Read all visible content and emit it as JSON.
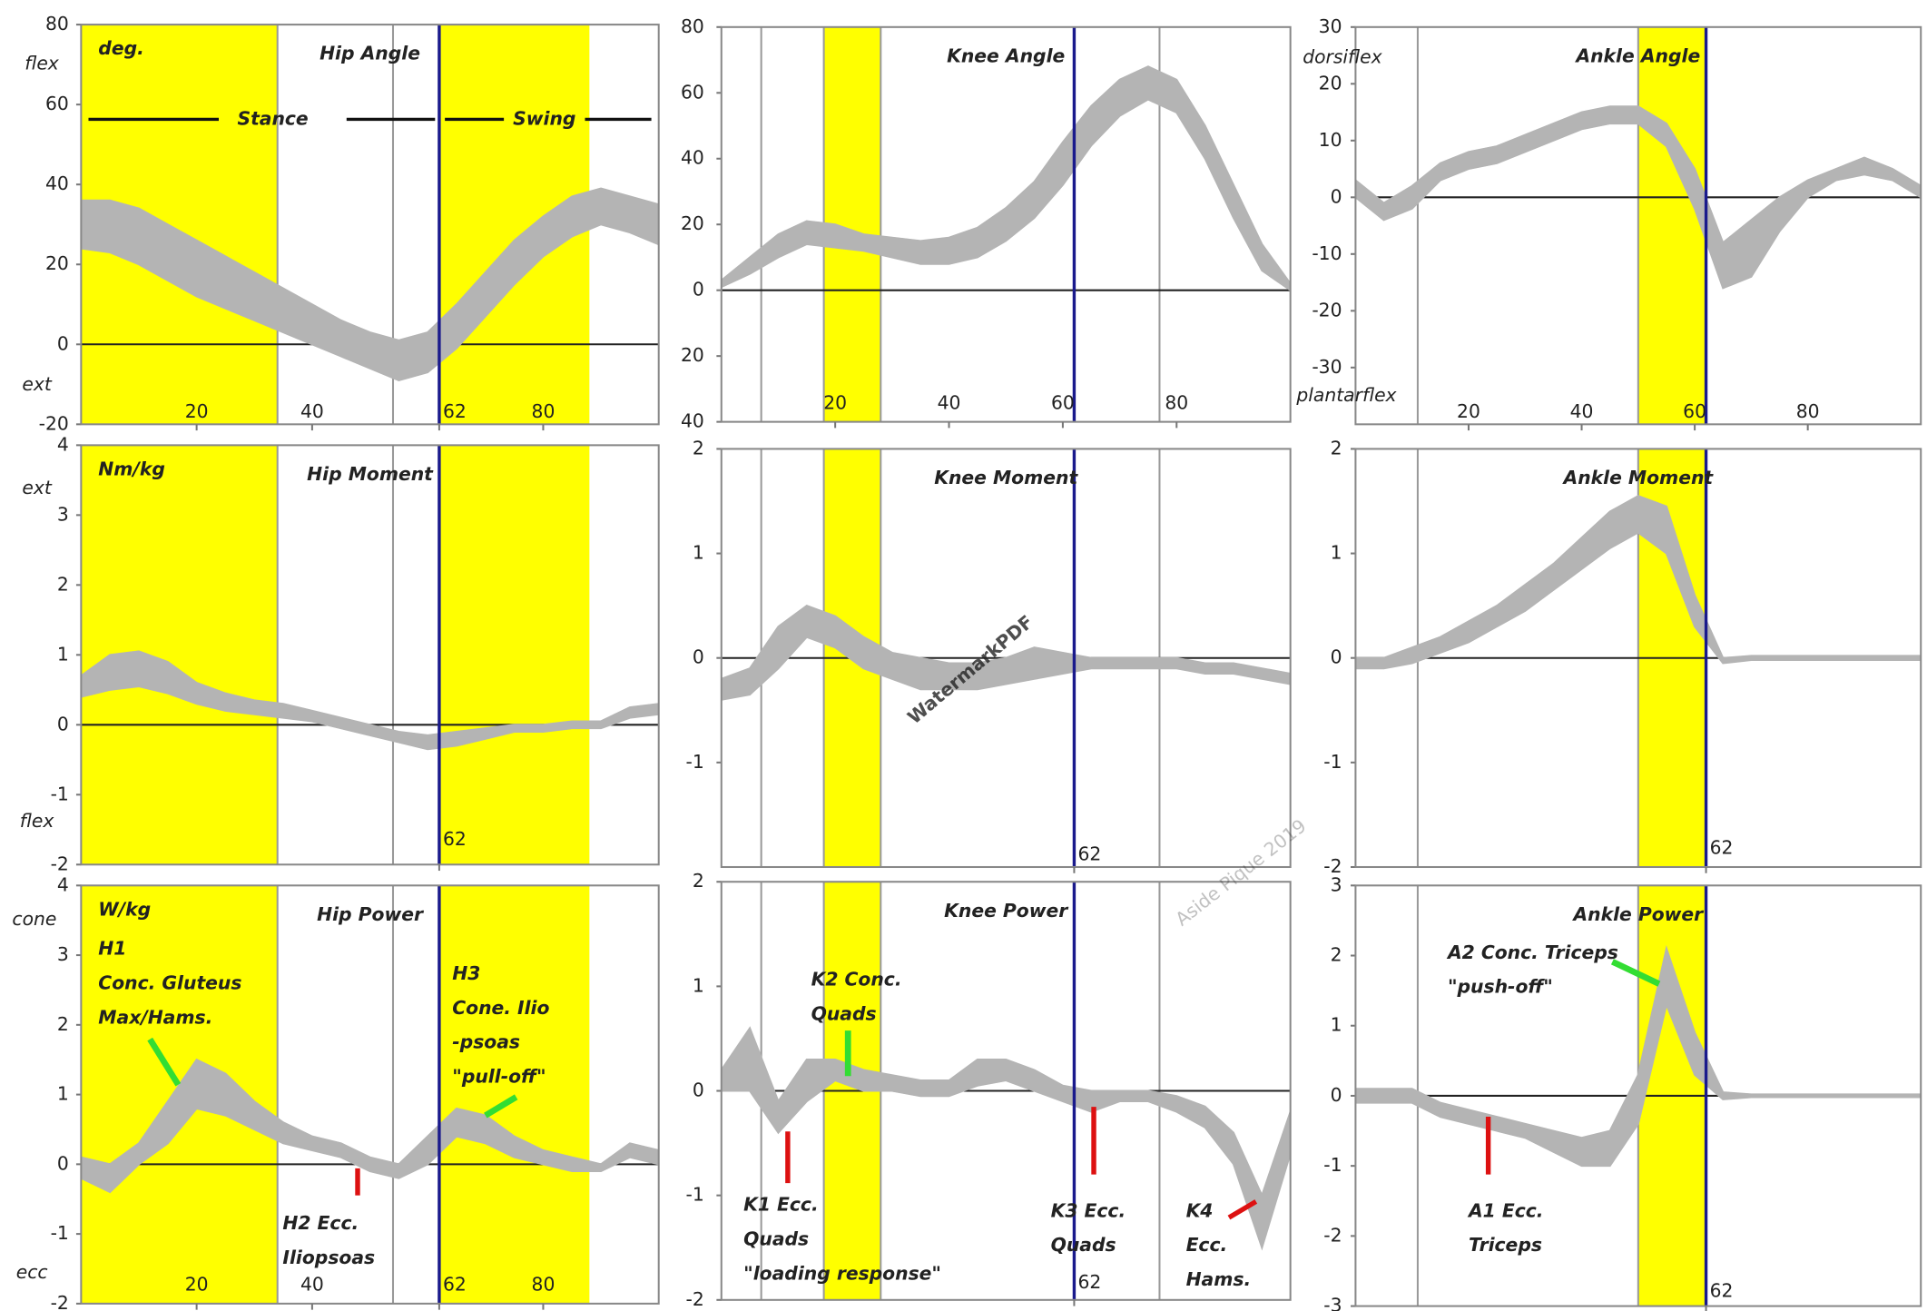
{
  "chart_data": [
    {
      "type": "band",
      "title": "Hip Angle",
      "unit": "deg.",
      "side_labels": [
        "flex",
        "ext"
      ],
      "phases": [
        "Stance",
        "Swing"
      ],
      "color": "#b4b4b4",
      "x": [
        0,
        5,
        10,
        15,
        20,
        25,
        30,
        35,
        40,
        45,
        50,
        55,
        60,
        65,
        70,
        75,
        80,
        85,
        90,
        95,
        100
      ],
      "upper": [
        36,
        36,
        34,
        30,
        26,
        22,
        18,
        14,
        10,
        6,
        3,
        1,
        3,
        10,
        18,
        26,
        32,
        37,
        39,
        37,
        35
      ],
      "lower": [
        24,
        23,
        20,
        16,
        12,
        9,
        6,
        3,
        0,
        -3,
        -6,
        -9,
        -7,
        -1,
        7,
        15,
        22,
        27,
        30,
        28,
        25
      ],
      "xlim": [
        0,
        100
      ],
      "xticks": [
        20,
        40,
        62,
        80
      ],
      "ylim": [
        -20,
        80
      ],
      "yticks": [
        80,
        60,
        40,
        20,
        0,
        -20
      ],
      "highlights": [
        [
          0,
          34
        ],
        [
          62,
          88
        ]
      ],
      "vlines": [
        34,
        54
      ],
      "marker_x": 62
    },
    {
      "type": "band",
      "title": "Knee Angle",
      "color": "#b4b4b4",
      "x": [
        0,
        5,
        10,
        15,
        20,
        25,
        30,
        35,
        40,
        45,
        50,
        55,
        60,
        65,
        70,
        75,
        80,
        85,
        90,
        95,
        100
      ],
      "upper": [
        3,
        10,
        17,
        21,
        20,
        17,
        16,
        15,
        16,
        19,
        25,
        33,
        45,
        56,
        64,
        68,
        64,
        50,
        32,
        14,
        2
      ],
      "lower": [
        1,
        5,
        10,
        14,
        13,
        12,
        10,
        8,
        8,
        10,
        15,
        22,
        32,
        44,
        53,
        58,
        54,
        40,
        22,
        6,
        0
      ],
      "xlim": [
        0,
        100
      ],
      "xticks": [
        20,
        40,
        60,
        80
      ],
      "ylim": [
        -40,
        80
      ],
      "yticks": [
        80,
        60,
        40,
        20,
        0,
        {
          "value": -20,
          "label": "20"
        },
        {
          "value": -40,
          "label": "40"
        }
      ],
      "highlights": [
        [
          18,
          28
        ]
      ],
      "vlines": [
        7,
        18,
        28,
        77
      ],
      "marker_x": 62
    },
    {
      "type": "band",
      "title": "Ankle Angle",
      "side_labels": [
        "dorsiflex",
        "plantarflex"
      ],
      "color": "#b4b4b4",
      "x": [
        0,
        5,
        10,
        15,
        20,
        25,
        30,
        35,
        40,
        45,
        50,
        55,
        60,
        65,
        70,
        75,
        80,
        85,
        90,
        95,
        100
      ],
      "upper": [
        3,
        -1,
        2,
        6,
        8,
        9,
        11,
        13,
        15,
        16,
        16,
        13,
        5,
        -8,
        -4,
        0,
        3,
        5,
        7,
        5,
        2
      ],
      "lower": [
        0,
        -4,
        -2,
        3,
        5,
        6,
        8,
        10,
        12,
        13,
        13,
        9,
        -2,
        -16,
        -14,
        -6,
        0,
        3,
        4,
        3,
        0
      ],
      "xlim": [
        0,
        100
      ],
      "xticks": [
        20,
        40,
        60,
        80
      ],
      "ylim": [
        -40,
        30
      ],
      "yticks": [
        30,
        20,
        10,
        0,
        -10,
        -20,
        -30
      ],
      "highlights": [
        [
          50,
          62
        ]
      ],
      "vlines": [
        11,
        50
      ],
      "marker_x": 62
    },
    {
      "type": "band",
      "title": "Hip Moment",
      "unit": "Nm/kg",
      "side_labels": [
        "ext",
        "flex"
      ],
      "color": "#b4b4b4",
      "x": [
        0,
        5,
        10,
        15,
        20,
        25,
        30,
        35,
        40,
        45,
        50,
        55,
        60,
        65,
        70,
        75,
        80,
        85,
        90,
        95,
        100
      ],
      "upper": [
        0.7,
        1.0,
        1.05,
        0.9,
        0.6,
        0.45,
        0.35,
        0.3,
        0.2,
        0.1,
        0.0,
        -0.1,
        -0.15,
        -0.1,
        -0.05,
        0.0,
        0.0,
        0.05,
        0.05,
        0.25,
        0.3
      ],
      "lower": [
        0.4,
        0.5,
        0.55,
        0.45,
        0.3,
        0.2,
        0.15,
        0.1,
        0.05,
        -0.05,
        -0.15,
        -0.25,
        -0.35,
        -0.3,
        -0.2,
        -0.1,
        -0.1,
        -0.05,
        -0.05,
        0.1,
        0.15
      ],
      "xlim": [
        0,
        100
      ],
      "xticks": [
        62
      ],
      "ylim": [
        -2,
        4
      ],
      "yticks": [
        4,
        3,
        2,
        1,
        0,
        -1,
        -2
      ],
      "highlights": [
        [
          0,
          34
        ],
        [
          62,
          88
        ]
      ],
      "vlines": [
        34,
        54
      ],
      "marker_x": 62
    },
    {
      "type": "band",
      "title": "Knee Moment",
      "color": "#b4b4b4",
      "x": [
        0,
        5,
        10,
        15,
        20,
        25,
        30,
        35,
        40,
        45,
        50,
        55,
        60,
        65,
        70,
        75,
        80,
        85,
        90,
        95,
        100
      ],
      "upper": [
        -0.2,
        -0.1,
        0.3,
        0.5,
        0.4,
        0.2,
        0.05,
        0.0,
        -0.05,
        -0.05,
        0.0,
        0.1,
        0.05,
        0.0,
        0.0,
        0.0,
        0.0,
        -0.05,
        -0.05,
        -0.1,
        -0.15
      ],
      "lower": [
        -0.4,
        -0.35,
        -0.1,
        0.2,
        0.1,
        -0.1,
        -0.2,
        -0.3,
        -0.3,
        -0.3,
        -0.25,
        -0.2,
        -0.15,
        -0.1,
        -0.1,
        -0.1,
        -0.1,
        -0.15,
        -0.15,
        -0.2,
        -0.25
      ],
      "xlim": [
        0,
        100
      ],
      "xticks": [
        62
      ],
      "ylim": [
        -2,
        2
      ],
      "yticks": [
        2,
        1,
        0,
        -1
      ],
      "highlights": [
        [
          18,
          28
        ]
      ],
      "vlines": [
        7,
        18,
        28,
        77
      ],
      "marker_x": 62
    },
    {
      "type": "band",
      "title": "Ankle Moment",
      "color": "#b4b4b4",
      "x": [
        0,
        5,
        10,
        15,
        20,
        25,
        30,
        35,
        40,
        45,
        50,
        55,
        60,
        65,
        70,
        75,
        80,
        85,
        90,
        95,
        100
      ],
      "upper": [
        0.0,
        0.0,
        0.1,
        0.2,
        0.35,
        0.5,
        0.7,
        0.9,
        1.15,
        1.4,
        1.55,
        1.45,
        0.6,
        0.0,
        0.02,
        0.02,
        0.02,
        0.02,
        0.02,
        0.02,
        0.02
      ],
      "lower": [
        -0.1,
        -0.1,
        -0.05,
        0.05,
        0.15,
        0.3,
        0.45,
        0.65,
        0.85,
        1.05,
        1.2,
        1.0,
        0.3,
        -0.05,
        -0.02,
        -0.02,
        -0.02,
        -0.02,
        -0.02,
        -0.02,
        -0.02
      ],
      "xlim": [
        0,
        100
      ],
      "xticks": [
        62
      ],
      "ylim": [
        -2,
        2
      ],
      "yticks": [
        2,
        1,
        0,
        -1,
        -2
      ],
      "highlights": [
        [
          50,
          62
        ]
      ],
      "vlines": [
        11,
        50
      ],
      "marker_x": 62
    },
    {
      "type": "band",
      "title": "Hip Power",
      "unit": "W/kg",
      "side_labels": [
        "cone",
        "ecc"
      ],
      "color": "#b4b4b4",
      "x": [
        0,
        5,
        10,
        15,
        20,
        25,
        30,
        35,
        40,
        45,
        50,
        55,
        60,
        65,
        70,
        75,
        80,
        85,
        90,
        95,
        100
      ],
      "upper": [
        0.1,
        0.0,
        0.3,
        0.9,
        1.5,
        1.3,
        0.9,
        0.6,
        0.4,
        0.3,
        0.1,
        0.0,
        0.4,
        0.8,
        0.7,
        0.4,
        0.2,
        0.1,
        0.0,
        0.3,
        0.2
      ],
      "lower": [
        -0.2,
        -0.4,
        0.0,
        0.3,
        0.8,
        0.7,
        0.5,
        0.3,
        0.2,
        0.1,
        -0.1,
        -0.2,
        0.0,
        0.4,
        0.3,
        0.1,
        0.0,
        -0.1,
        -0.1,
        0.1,
        0.0
      ],
      "xlim": [
        0,
        100
      ],
      "xticks": [
        20,
        40,
        62,
        80
      ],
      "ylim": [
        -2,
        4
      ],
      "yticks": [
        4,
        3,
        2,
        1,
        0,
        -1,
        -2
      ],
      "highlights": [
        [
          0,
          34
        ],
        [
          62,
          88
        ]
      ],
      "vlines": [
        34,
        54
      ],
      "marker_x": 62,
      "annotations": [
        {
          "color": "#33dd33",
          "lines": [
            "H1",
            "Conc. Gluteus",
            "Max/Hams."
          ]
        },
        {
          "color": "#33dd33",
          "lines": [
            "H3",
            "Cone. Ilio",
            "-psoas",
            "\"pull-off\""
          ]
        },
        {
          "color": "#dd1111",
          "lines": [
            "H2 Ecc.",
            "Iliopsoas"
          ]
        }
      ]
    },
    {
      "type": "band",
      "title": "Knee Power",
      "color": "#b4b4b4",
      "x": [
        0,
        5,
        10,
        15,
        20,
        25,
        30,
        35,
        40,
        45,
        50,
        55,
        60,
        65,
        70,
        75,
        80,
        85,
        90,
        95,
        100
      ],
      "upper": [
        0.2,
        0.6,
        -0.1,
        0.3,
        0.3,
        0.2,
        0.15,
        0.1,
        0.1,
        0.3,
        0.3,
        0.2,
        0.05,
        0.0,
        0.0,
        0.0,
        -0.05,
        -0.15,
        -0.4,
        -1.0,
        -0.2
      ],
      "lower": [
        0.0,
        0.0,
        -0.4,
        -0.1,
        0.1,
        0.0,
        0.0,
        -0.05,
        -0.05,
        0.05,
        0.1,
        0.0,
        -0.1,
        -0.2,
        -0.1,
        -0.1,
        -0.2,
        -0.35,
        -0.7,
        -1.5,
        -0.6
      ],
      "xlim": [
        0,
        100
      ],
      "xticks": [
        62
      ],
      "ylim": [
        -2,
        2
      ],
      "yticks": [
        2,
        1,
        0,
        -1,
        -2
      ],
      "highlights": [
        [
          18,
          28
        ]
      ],
      "vlines": [
        7,
        18,
        28,
        77
      ],
      "marker_x": 62,
      "annotations": [
        {
          "color": "#33dd33",
          "lines": [
            "K2 Conc.",
            "Quads"
          ]
        },
        {
          "color": "#dd1111",
          "lines": [
            "K1 Ecc.",
            "Quads",
            "\"loading response\""
          ]
        },
        {
          "color": "#dd1111",
          "lines": [
            "K3 Ecc.",
            "Quads"
          ]
        },
        {
          "color": "#dd1111",
          "lines": [
            "K4",
            "Ecc.",
            "Hams."
          ]
        }
      ]
    },
    {
      "type": "band",
      "title": "Ankle Power",
      "color": "#b4b4b4",
      "x": [
        0,
        5,
        10,
        15,
        20,
        25,
        30,
        35,
        40,
        45,
        50,
        55,
        60,
        65,
        70,
        75,
        80,
        85,
        90,
        95,
        100
      ],
      "upper": [
        0.1,
        0.1,
        0.1,
        -0.1,
        -0.2,
        -0.3,
        -0.4,
        -0.5,
        -0.6,
        -0.5,
        0.3,
        2.1,
        0.9,
        0.05,
        0.02,
        0.02,
        0.02,
        0.02,
        0.02,
        0.02,
        0.02
      ],
      "lower": [
        -0.1,
        -0.1,
        -0.1,
        -0.3,
        -0.4,
        -0.5,
        -0.6,
        -0.8,
        -1.0,
        -1.0,
        -0.4,
        1.3,
        0.3,
        -0.05,
        -0.02,
        -0.02,
        -0.02,
        -0.02,
        -0.02,
        -0.02,
        -0.02
      ],
      "xlim": [
        0,
        100
      ],
      "xticks": [
        62
      ],
      "ylim": [
        -3,
        3
      ],
      "yticks": [
        3,
        2,
        1,
        0,
        -1,
        -2,
        -3
      ],
      "highlights": [
        [
          50,
          62
        ]
      ],
      "vlines": [
        11,
        50
      ],
      "marker_x": 62,
      "annotations": [
        {
          "color": "#33dd33",
          "lines": [
            "A2 Conc. Triceps",
            "\"push-off\""
          ]
        },
        {
          "color": "#dd1111",
          "lines": [
            "A1 Ecc.",
            "Triceps"
          ]
        }
      ]
    }
  ],
  "watermarks": [
    "WatermarkPDF",
    "Aside Pique 2019"
  ]
}
